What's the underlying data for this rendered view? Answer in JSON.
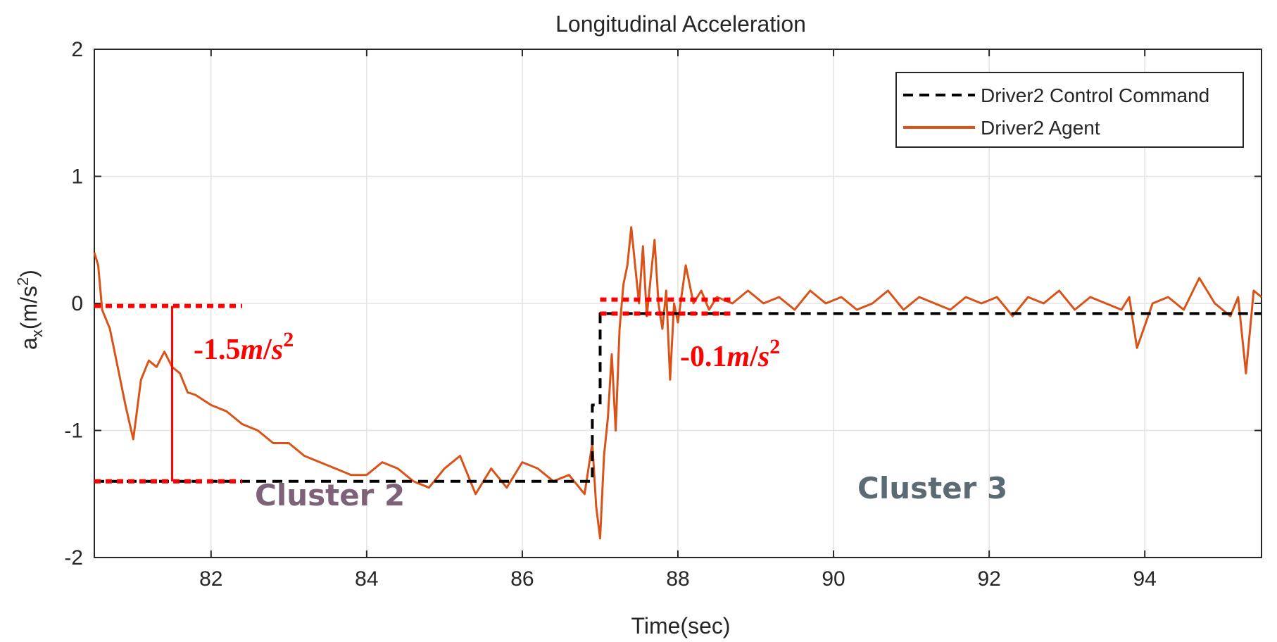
{
  "chart_data": {
    "type": "line",
    "title": "Longitudinal Acceleration",
    "xlabel": "Time(sec)",
    "ylabel": {
      "base": "a",
      "sub": "x",
      "unit": "(m/s",
      "sup": "2",
      "close": ")"
    },
    "xlim": [
      80.5,
      95.5
    ],
    "ylim": [
      -2,
      2
    ],
    "xticks": [
      82,
      84,
      86,
      88,
      90,
      92,
      94
    ],
    "yticks": [
      -2,
      -1,
      0,
      1,
      2
    ],
    "grid": true,
    "legend_position": "top-right",
    "colors": {
      "command": "#000000",
      "agent": "#d95319",
      "annotation": "#ff0000",
      "cluster2": "#7e6277",
      "cluster3": "#5a6b73"
    },
    "series": [
      {
        "name": "Driver2 Control Command",
        "style": "dashed",
        "color": "#000000",
        "x": [
          80.5,
          86.9,
          86.9,
          87.0,
          87.0,
          95.5
        ],
        "y": [
          -1.4,
          -1.4,
          -0.8,
          -0.8,
          -0.08,
          -0.08
        ]
      },
      {
        "name": "Driver2 Agent",
        "style": "solid",
        "color": "#d95319",
        "x": [
          80.5,
          80.55,
          80.6,
          80.7,
          80.8,
          80.9,
          81.0,
          81.1,
          81.2,
          81.3,
          81.4,
          81.5,
          81.6,
          81.7,
          81.8,
          82.0,
          82.2,
          82.4,
          82.6,
          82.8,
          83.0,
          83.2,
          83.4,
          83.6,
          83.8,
          84.0,
          84.2,
          84.4,
          84.6,
          84.8,
          85.0,
          85.2,
          85.4,
          85.6,
          85.8,
          86.0,
          86.2,
          86.4,
          86.6,
          86.8,
          86.9,
          86.95,
          87.0,
          87.05,
          87.1,
          87.15,
          87.2,
          87.25,
          87.3,
          87.35,
          87.4,
          87.45,
          87.5,
          87.55,
          87.6,
          87.65,
          87.7,
          87.75,
          87.8,
          87.85,
          87.9,
          87.95,
          88.0,
          88.1,
          88.2,
          88.3,
          88.4,
          88.5,
          88.7,
          88.9,
          89.1,
          89.3,
          89.5,
          89.7,
          89.9,
          90.1,
          90.3,
          90.5,
          90.7,
          90.9,
          91.1,
          91.3,
          91.5,
          91.7,
          91.9,
          92.1,
          92.3,
          92.5,
          92.7,
          92.9,
          93.1,
          93.3,
          93.5,
          93.7,
          93.8,
          93.9,
          94.1,
          94.3,
          94.5,
          94.7,
          94.9,
          95.1,
          95.2,
          95.3,
          95.4,
          95.5
        ],
        "y": [
          0.4,
          0.3,
          -0.05,
          -0.2,
          -0.5,
          -0.8,
          -1.07,
          -0.6,
          -0.45,
          -0.5,
          -0.38,
          -0.5,
          -0.55,
          -0.7,
          -0.72,
          -0.8,
          -0.85,
          -0.95,
          -1.0,
          -1.1,
          -1.1,
          -1.2,
          -1.25,
          -1.3,
          -1.35,
          -1.35,
          -1.25,
          -1.3,
          -1.4,
          -1.45,
          -1.3,
          -1.2,
          -1.5,
          -1.3,
          -1.45,
          -1.25,
          -1.3,
          -1.4,
          -1.35,
          -1.5,
          -1.1,
          -1.6,
          -1.85,
          -1.2,
          -0.9,
          -0.4,
          -1.0,
          -0.2,
          0.15,
          0.3,
          0.6,
          0.3,
          0.0,
          0.45,
          -0.1,
          0.2,
          0.5,
          0.0,
          -0.2,
          0.1,
          -0.6,
          0.0,
          -0.15,
          0.3,
          0.0,
          0.1,
          -0.05,
          0.05,
          0.0,
          0.1,
          0.0,
          0.05,
          -0.05,
          0.1,
          0.0,
          0.05,
          -0.05,
          0.0,
          0.1,
          -0.05,
          0.05,
          0.0,
          -0.05,
          0.05,
          0.0,
          0.05,
          -0.1,
          0.05,
          0.0,
          0.1,
          -0.05,
          0.05,
          0.0,
          -0.05,
          0.05,
          -0.35,
          0.0,
          0.05,
          -0.05,
          0.2,
          0.0,
          -0.1,
          0.05,
          -0.55,
          0.1,
          0.05
        ]
      }
    ],
    "annotations": {
      "cluster2_delta": "-1.5",
      "cluster2_unit_m": "m",
      "cluster2_unit_s": "s",
      "cluster2_unit_exp": "2",
      "cluster3_delta": "-0.1",
      "cluster3_unit_m": "m",
      "cluster3_unit_s": "s",
      "cluster3_unit_exp": "2",
      "cluster2_label": "Cluster 2",
      "cluster3_label": "Cluster 3",
      "bracket1": {
        "x_start": 80.5,
        "x_end": 82.4,
        "x_bar": 81.5,
        "y_top": -0.02,
        "y_bottom": -1.4
      },
      "bracket2": {
        "x_start": 87.0,
        "x_end": 88.7,
        "y_top": 0.03,
        "y_bottom": -0.08
      }
    }
  }
}
